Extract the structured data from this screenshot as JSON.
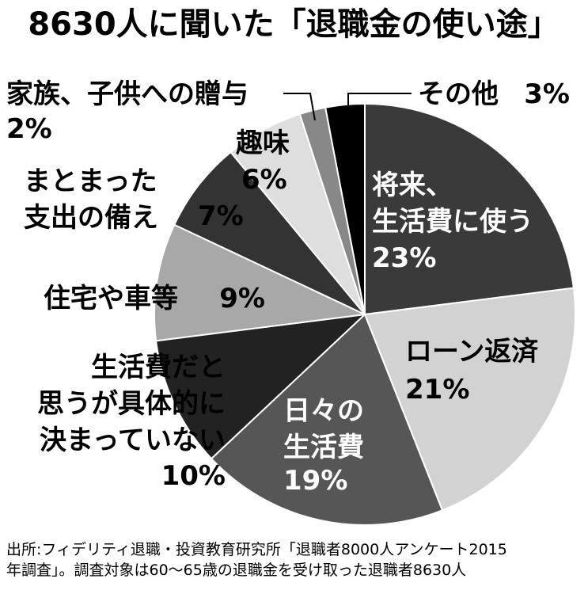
{
  "chart_data": {
    "type": "pie",
    "title": "8630人に聞いた「退職金の使い途」",
    "categories": [
      "将来、\n生活費に使う",
      "ローン返済",
      "日々の\n生活費",
      "生活費だと\n思うが具体的に\n決まっていない",
      "住宅や車等",
      "まとまった\n支出の備え",
      "趣味",
      "家族、子供への贈与",
      "その他"
    ],
    "values": [
      23,
      21,
      19,
      10,
      9,
      7,
      6,
      2,
      3
    ],
    "value_labels": [
      "23%",
      "21%",
      "19%",
      "10%",
      "9%",
      "7%",
      "6%",
      "2%",
      "3%"
    ],
    "colors": [
      "#3a3a3a",
      "#d2d2d2",
      "#565656",
      "#222222",
      "#a8a8a8",
      "#333333",
      "#dedede",
      "#888888",
      "#000000"
    ],
    "note": "出所:フィデリティ退職・投資教育研究所「退職者8000人アンケート2015\n年調査」。調査対象は60〜65歳の退職金を受け取った退職者8630人"
  }
}
